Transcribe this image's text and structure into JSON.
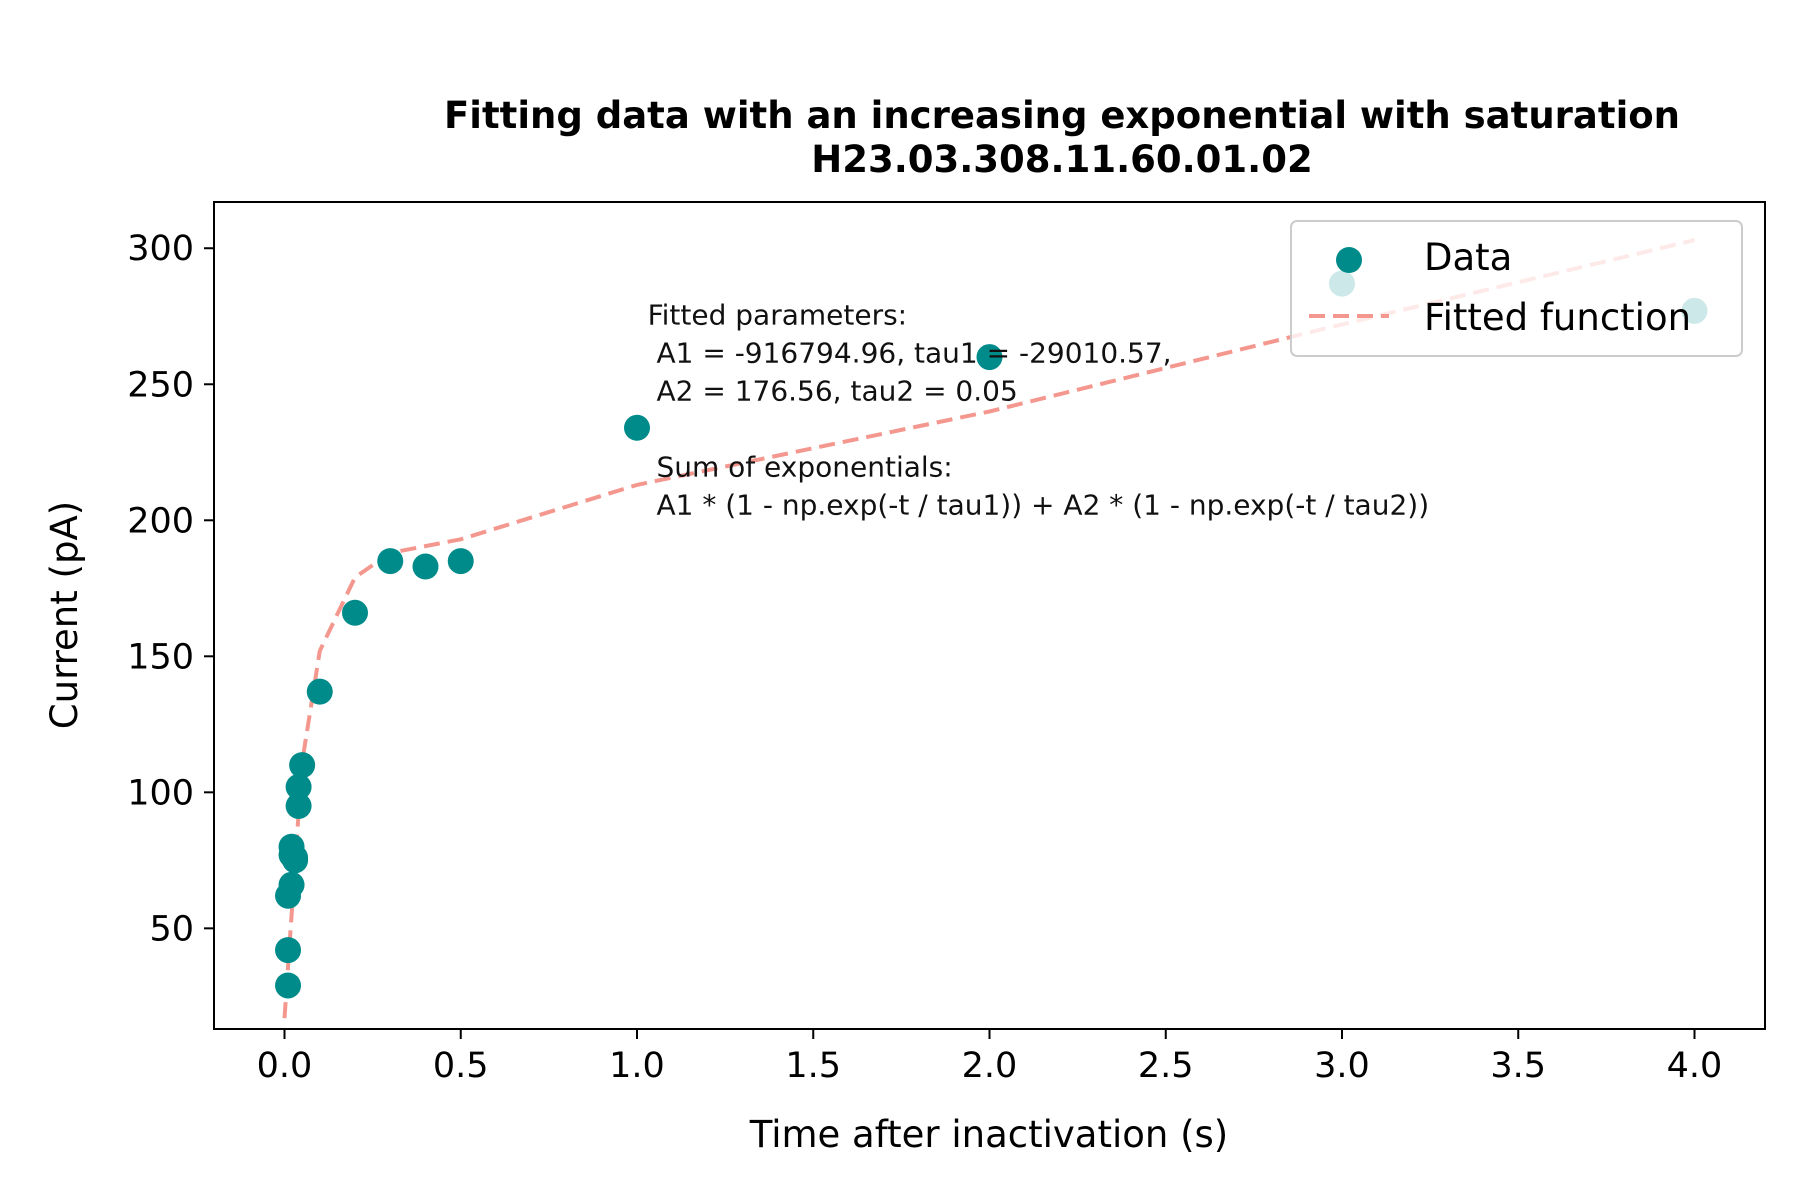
{
  "colors": {
    "data_marker": "#008b8b",
    "fit_line": "#f4978e",
    "axes": "#000000",
    "legend_border": "#cccccc"
  },
  "chart_data": {
    "type": "scatter",
    "title": "Fitting data with an increasing exponential with saturation",
    "subtitle": "H23.03.308.11.60.01.02",
    "xlabel": "Time after inactivation (s)",
    "ylabel": "Current (pA)",
    "xlim": [
      -0.2,
      4.2
    ],
    "ylim": [
      13,
      317
    ],
    "xticks": [
      0.0,
      0.5,
      1.0,
      1.5,
      2.0,
      2.5,
      3.0,
      3.5,
      4.0
    ],
    "xtick_labels": [
      "0.0",
      "0.5",
      "1.0",
      "1.5",
      "2.0",
      "2.5",
      "3.0",
      "3.5",
      "4.0"
    ],
    "yticks": [
      50,
      100,
      150,
      200,
      250,
      300
    ],
    "ytick_labels": [
      "50",
      "100",
      "150",
      "200",
      "250",
      "300"
    ],
    "grid": false,
    "legend_position": "top-right",
    "series": [
      {
        "name": "Data",
        "kind": "scatter",
        "x": [
          0.01,
          0.01,
          0.01,
          0.02,
          0.02,
          0.02,
          0.03,
          0.03,
          0.04,
          0.04,
          0.05,
          0.1,
          0.2,
          0.3,
          0.4,
          0.5,
          1.0,
          2.0,
          3.0,
          4.0
        ],
        "y": [
          29,
          42,
          62,
          77,
          80,
          66,
          75,
          76,
          95,
          102,
          110,
          137,
          166,
          185,
          183,
          185,
          234,
          260,
          287,
          277
        ]
      },
      {
        "name": "Fitted function",
        "kind": "line",
        "style": "dashed",
        "x": [
          0.0,
          0.05,
          0.1,
          0.2,
          0.3,
          0.5,
          1.0,
          2.0,
          3.0,
          4.0
        ],
        "y": [
          17,
          111,
          152,
          179,
          188,
          193,
          213,
          240,
          272,
          303
        ]
      }
    ],
    "annotation": {
      "lines": [
        "Fitted parameters:",
        " A1 = -916794.96, tau1 = -29010.57,",
        " A2 = 176.56, tau2 = 0.05",
        "",
        " Sum of exponentials:",
        " A1 * (1 - np.exp(-t / tau1)) + A2 * (1 - np.exp(-t / tau2))"
      ]
    }
  }
}
